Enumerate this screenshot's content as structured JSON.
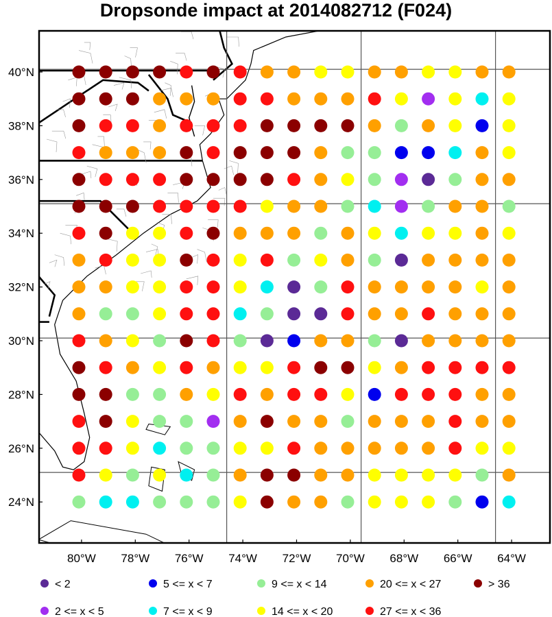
{
  "title": "Dropsonde impact at 2014082712 (F024)",
  "lat_labels": [
    "40°N",
    "38°N",
    "36°N",
    "34°N",
    "32°N",
    "30°N",
    "28°N",
    "26°N",
    "24°N"
  ],
  "lon_labels": [
    "80°W",
    "78°W",
    "76°W",
    "74°W",
    "72°W",
    "70°W",
    "68°W",
    "66°W",
    "64°W"
  ],
  "lat_values": [
    40,
    38,
    36,
    34,
    32,
    30,
    28,
    26,
    24
  ],
  "lon_values": [
    -80,
    -78,
    -76,
    -74,
    -72,
    -70,
    -68,
    -66,
    -64
  ],
  "grid_lats": [
    40,
    35,
    30,
    25
  ],
  "grid_lons": [
    -75,
    -70,
    -65
  ],
  "colors": {
    "c1": "#5b2a96",
    "c2": "#a22ef0",
    "c3": "#0000ee",
    "c4": "#00f0f0",
    "c5": "#96ee96",
    "c6": "#ffff00",
    "c7": "#ffa000",
    "c8": "#ff1010",
    "c9": "#8b0000"
  },
  "legend": [
    {
      "key": "c1",
      "label": "<  2"
    },
    {
      "key": "c3",
      "label": "5 <= x <  7"
    },
    {
      "key": "c5",
      "label": "9 <= x < 14"
    },
    {
      "key": "c7",
      "label": "20 <= x < 27"
    },
    {
      "key": "c9",
      "label": "> 36"
    },
    {
      "key": "c2",
      "label": "2 <= x <  5"
    },
    {
      "key": "c4",
      "label": "7 <= x <  9"
    },
    {
      "key": "c6",
      "label": "14 <= x < 20"
    },
    {
      "key": "c8",
      "label": "27 <= x < 36"
    }
  ],
  "chart_data": {
    "type": "scatter",
    "description_units": "impact class per grid point, lat 40N..24N, lon 80.5W..64.5W",
    "lat_rows": [
      39.9,
      38.9,
      37.9,
      36.9,
      35.9,
      34.9,
      33.9,
      32.9,
      31.9,
      30.9,
      29.9,
      28.9,
      27.9,
      26.9,
      25.9,
      24.9,
      23.9
    ],
    "lon_cols": [
      -80.5,
      -79.5,
      -78.5,
      -77.5,
      -76.5,
      -75.5,
      -74.5,
      -73.5,
      -72.5,
      -71.5,
      -70.5,
      -69.5,
      -68.5,
      -67.5,
      -66.5,
      -65.5,
      -64.5
    ],
    "classes": [
      [
        9,
        9,
        9,
        9,
        8,
        9,
        8,
        7,
        7,
        6,
        6,
        7,
        7,
        6,
        6,
        7,
        7
      ],
      [
        9,
        9,
        9,
        7,
        7,
        7,
        8,
        8,
        7,
        7,
        7,
        8,
        6,
        2,
        6,
        4,
        6
      ],
      [
        9,
        8,
        8,
        7,
        8,
        8,
        8,
        9,
        9,
        9,
        9,
        7,
        5,
        7,
        6,
        3,
        6
      ],
      [
        8,
        7,
        7,
        7,
        9,
        8,
        9,
        9,
        9,
        7,
        5,
        5,
        3,
        3,
        4,
        7,
        6
      ],
      [
        9,
        8,
        8,
        8,
        9,
        9,
        9,
        9,
        8,
        7,
        6,
        5,
        2,
        1,
        5,
        7,
        7
      ],
      [
        9,
        9,
        9,
        8,
        8,
        8,
        8,
        6,
        7,
        7,
        5,
        4,
        2,
        5,
        7,
        7,
        5
      ],
      [
        8,
        9,
        6,
        6,
        8,
        9,
        7,
        7,
        7,
        5,
        7,
        6,
        4,
        6,
        6,
        7,
        6
      ],
      [
        7,
        8,
        6,
        6,
        9,
        8,
        6,
        8,
        5,
        6,
        7,
        5,
        1,
        7,
        7,
        7,
        7
      ],
      [
        7,
        7,
        6,
        6,
        8,
        8,
        6,
        4,
        1,
        5,
        8,
        7,
        7,
        7,
        7,
        6,
        7
      ],
      [
        7,
        5,
        5,
        6,
        8,
        8,
        4,
        5,
        1,
        1,
        8,
        7,
        7,
        8,
        7,
        7,
        7
      ],
      [
        8,
        7,
        6,
        5,
        9,
        8,
        5,
        1,
        3,
        7,
        7,
        5,
        1,
        7,
        7,
        7,
        7
      ],
      [
        9,
        8,
        7,
        6,
        8,
        7,
        6,
        6,
        8,
        9,
        9,
        6,
        7,
        8,
        8,
        8,
        8
      ],
      [
        9,
        9,
        5,
        5,
        7,
        6,
        8,
        7,
        8,
        8,
        6,
        3,
        8,
        8,
        8,
        7,
        7
      ],
      [
        8,
        9,
        6,
        5,
        5,
        2,
        7,
        9,
        7,
        7,
        5,
        7,
        7,
        7,
        8,
        7,
        7
      ],
      [
        8,
        8,
        6,
        4,
        5,
        5,
        6,
        6,
        8,
        7,
        7,
        7,
        7,
        7,
        8,
        6,
        6
      ],
      [
        8,
        6,
        5,
        6,
        4,
        5,
        7,
        9,
        9,
        7,
        7,
        6,
        6,
        6,
        6,
        5,
        7
      ],
      [
        5,
        4,
        4,
        5,
        5,
        5,
        6,
        9,
        7,
        7,
        5,
        6,
        6,
        6,
        5,
        3,
        4
      ]
    ]
  }
}
